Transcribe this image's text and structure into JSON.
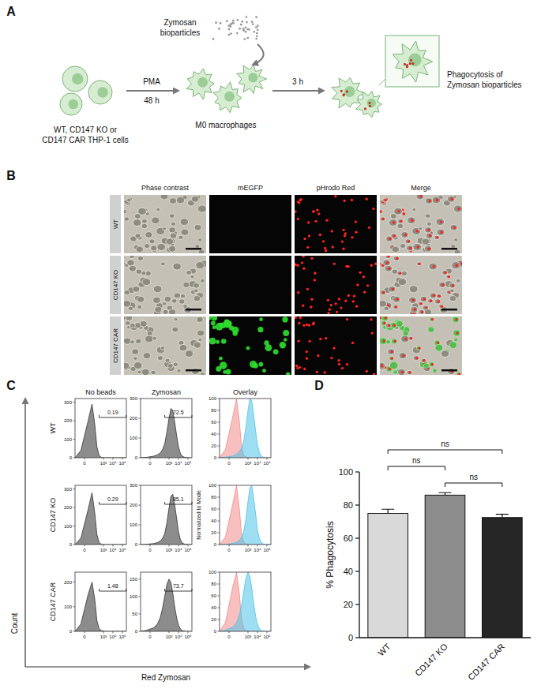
{
  "panel_a": {
    "letter": "A",
    "particles": [
      "Zymosan",
      "bioparticles"
    ],
    "cells": [
      "WT, CD147 KO or",
      "CD147 CAR THP-1 cells"
    ],
    "treatment": "PMA",
    "treatment_time": "48 h",
    "macrophages": "M0 macrophages",
    "incubation_time": "3 h",
    "outcome": [
      "Phagocytosis of",
      "Zymosan bioparticles"
    ]
  },
  "panel_b": {
    "letter": "B",
    "columns": [
      "Phase contrast",
      "mEGFP",
      "pHrodo Red",
      "Merge"
    ],
    "rows": [
      "WT",
      "CD147 KO",
      "CD147 CAR"
    ]
  },
  "panel_c": {
    "letter": "C",
    "columns": [
      "No beads",
      "Zymosan",
      "Overlay"
    ],
    "rows": [
      "WT",
      "CD147 KO",
      "CD147 CAR"
    ],
    "y_label": "Count",
    "overlay_y_label": "Normalized to Mode",
    "x_label": "Red Zymosan"
  },
  "panel_d": {
    "letter": "D"
  },
  "chart_data": [
    {
      "type": "area",
      "x": [
        -100,
        -20,
        20,
        60,
        120,
        200,
        350,
        600,
        1000,
        1600,
        2500,
        4000,
        6500,
        10000,
        16000,
        25000,
        40000,
        65000,
        100000,
        262144
      ],
      "values": [
        0,
        40,
        200,
        290,
        180,
        60,
        12,
        2,
        0,
        0,
        0,
        0,
        0,
        0,
        0,
        0,
        0,
        0,
        0,
        0
      ],
      "color": "#8c8c8c",
      "xlim": [
        -100,
        262144
      ],
      "xticks": [
        0,
        {
          "value": 1000,
          "label": "10³"
        },
        {
          "value": 10000,
          "label": "10⁴"
        },
        {
          "value": 100000,
          "label": "10⁵"
        }
      ],
      "ylim": [
        0,
        320
      ],
      "yticks": [
        0,
        100,
        200,
        300
      ],
      "gate": [
        350,
        262144
      ],
      "gate_percent": 0.19
    },
    {
      "type": "area",
      "x": [
        -100,
        -20,
        20,
        60,
        120,
        200,
        350,
        600,
        1000,
        1600,
        2500,
        4000,
        6500,
        10000,
        16000,
        25000,
        40000,
        65000,
        100000,
        262144
      ],
      "values": [
        0,
        2,
        8,
        15,
        25,
        40,
        70,
        130,
        200,
        250,
        240,
        180,
        110,
        55,
        22,
        8,
        3,
        1,
        0,
        0
      ],
      "color": "#8c8c8c",
      "xlim": [
        -100,
        262144
      ],
      "xticks": [
        0,
        {
          "value": 1000,
          "label": "10³"
        },
        {
          "value": 10000,
          "label": "10⁴"
        },
        {
          "value": 100000,
          "label": "10⁵"
        }
      ],
      "ylim": [
        0,
        300
      ],
      "yticks": [
        0,
        100,
        200,
        300
      ],
      "gate": [
        350,
        262144
      ],
      "gate_percent": 72.5
    },
    {
      "type": "area",
      "x": [
        -100,
        -20,
        20,
        60,
        120,
        200,
        350,
        600,
        1000,
        1600,
        2500,
        4000,
        6500,
        10000,
        16000,
        25000,
        40000,
        65000,
        100000,
        262144
      ],
      "series": [
        {
          "color": "#f28b8b",
          "values": [
            0,
            14,
            69,
            100,
            62,
            21,
            4,
            1,
            0,
            0,
            0,
            0,
            0,
            0,
            0,
            0,
            0,
            0,
            0,
            0
          ]
        },
        {
          "color": "#4fc3e8",
          "values": [
            0,
            1,
            3,
            6,
            10,
            16,
            28,
            52,
            80,
            100,
            96,
            72,
            44,
            22,
            9,
            3,
            1,
            0,
            0,
            0
          ]
        }
      ],
      "xlim": [
        -100,
        262144
      ],
      "xticks": [
        0,
        {
          "value": 1000,
          "label": "10³"
        },
        {
          "value": 10000,
          "label": "10⁴"
        },
        {
          "value": 100000,
          "label": "10⁵"
        }
      ],
      "ylim": [
        0,
        100
      ],
      "yticks": [
        0,
        20,
        40,
        60,
        80,
        100
      ]
    },
    {
      "type": "area",
      "x": [
        -100,
        -20,
        20,
        60,
        120,
        200,
        350,
        600,
        1000,
        1600,
        2500,
        4000,
        6500,
        10000,
        16000,
        25000,
        40000,
        65000,
        100000,
        262144
      ],
      "values": [
        0,
        35,
        190,
        280,
        170,
        55,
        10,
        2,
        0,
        0,
        0,
        0,
        0,
        0,
        0,
        0,
        0,
        0,
        0,
        0
      ],
      "color": "#8c8c8c",
      "xlim": [
        -100,
        262144
      ],
      "xticks": [
        0,
        {
          "value": 1000,
          "label": "10³"
        },
        {
          "value": 10000,
          "label": "10⁴"
        },
        {
          "value": 100000,
          "label": "10⁵"
        }
      ],
      "ylim": [
        0,
        320
      ],
      "yticks": [
        0,
        100,
        200,
        300
      ],
      "gate": [
        350,
        262144
      ],
      "gate_percent": 0.29
    },
    {
      "type": "area",
      "x": [
        -100,
        -20,
        20,
        60,
        120,
        200,
        350,
        600,
        1000,
        1600,
        2500,
        4000,
        6500,
        10000,
        16000,
        25000,
        40000,
        65000,
        100000,
        262144
      ],
      "values": [
        0,
        1,
        5,
        10,
        18,
        30,
        55,
        110,
        185,
        245,
        255,
        200,
        130,
        65,
        25,
        9,
        3,
        1,
        0,
        0
      ],
      "color": "#8c8c8c",
      "xlim": [
        -100,
        262144
      ],
      "xticks": [
        0,
        {
          "value": 1000,
          "label": "10³"
        },
        {
          "value": 10000,
          "label": "10⁴"
        },
        {
          "value": 100000,
          "label": "10⁵"
        }
      ],
      "ylim": [
        0,
        300
      ],
      "yticks": [
        0,
        100,
        200,
        300
      ],
      "gate": [
        350,
        262144
      ],
      "gate_percent": 85.1
    },
    {
      "type": "area",
      "x": [
        -100,
        -20,
        20,
        60,
        120,
        200,
        350,
        600,
        1000,
        1600,
        2500,
        4000,
        6500,
        10000,
        16000,
        25000,
        40000,
        65000,
        100000,
        262144
      ],
      "series": [
        {
          "color": "#f28b8b",
          "values": [
            0,
            13,
            68,
            100,
            61,
            20,
            4,
            1,
            0,
            0,
            0,
            0,
            0,
            0,
            0,
            0,
            0,
            0,
            0,
            0
          ]
        },
        {
          "color": "#4fc3e8",
          "values": [
            0,
            0,
            2,
            4,
            7,
            12,
            22,
            43,
            73,
            96,
            100,
            78,
            51,
            25,
            10,
            4,
            1,
            0,
            0,
            0
          ]
        }
      ],
      "xlim": [
        -100,
        262144
      ],
      "xticks": [
        0,
        {
          "value": 1000,
          "label": "10³"
        },
        {
          "value": 10000,
          "label": "10⁴"
        },
        {
          "value": 100000,
          "label": "10⁵"
        }
      ],
      "ylim": [
        0,
        100
      ],
      "yticks": [
        0,
        20,
        40,
        60,
        80,
        100
      ]
    },
    {
      "type": "area",
      "x": [
        -100,
        -20,
        20,
        60,
        120,
        200,
        350,
        600,
        1000,
        1600,
        2500,
        4000,
        6500,
        10000,
        16000,
        25000,
        40000,
        65000,
        100000,
        262144
      ],
      "values": [
        0,
        30,
        150,
        200,
        130,
        45,
        10,
        3,
        1,
        0,
        0,
        0,
        0,
        0,
        0,
        0,
        0,
        0,
        0,
        0
      ],
      "color": "#8c8c8c",
      "xlim": [
        -100,
        262144
      ],
      "xticks": [
        0,
        {
          "value": 1000,
          "label": "10³"
        },
        {
          "value": 10000,
          "label": "10⁴"
        },
        {
          "value": 100000,
          "label": "10⁵"
        }
      ],
      "ylim": [
        0,
        240
      ],
      "yticks": [
        0,
        100,
        200
      ],
      "gate": [
        350,
        262144
      ],
      "gate_percent": 1.48
    },
    {
      "type": "area",
      "x": [
        -100,
        -20,
        20,
        60,
        120,
        200,
        350,
        600,
        1000,
        1600,
        2500,
        4000,
        6500,
        10000,
        16000,
        25000,
        40000,
        65000,
        100000,
        262144
      ],
      "values": [
        0,
        3,
        10,
        22,
        40,
        65,
        100,
        135,
        150,
        140,
        110,
        70,
        38,
        18,
        7,
        2,
        1,
        0,
        0,
        0
      ],
      "color": "#8c8c8c",
      "xlim": [
        -100,
        262144
      ],
      "xticks": [
        0,
        {
          "value": 1000,
          "label": "10³"
        },
        {
          "value": 10000,
          "label": "10⁴"
        },
        {
          "value": 100000,
          "label": "10⁵"
        }
      ],
      "ylim": [
        0,
        170
      ],
      "yticks": [
        0,
        50,
        100,
        150
      ],
      "gate": [
        350,
        262144
      ],
      "gate_percent": 73.7
    },
    {
      "type": "area",
      "x": [
        -100,
        -20,
        20,
        60,
        120,
        200,
        350,
        600,
        1000,
        1600,
        2500,
        4000,
        6500,
        10000,
        16000,
        25000,
        40000,
        65000,
        100000,
        262144
      ],
      "series": [
        {
          "color": "#f28b8b",
          "values": [
            0,
            15,
            75,
            100,
            65,
            23,
            5,
            2,
            1,
            0,
            0,
            0,
            0,
            0,
            0,
            0,
            0,
            0,
            0,
            0
          ]
        },
        {
          "color": "#4fc3e8",
          "values": [
            0,
            2,
            7,
            15,
            27,
            43,
            67,
            90,
            100,
            93,
            73,
            47,
            25,
            12,
            5,
            1,
            1,
            0,
            0,
            0
          ]
        }
      ],
      "xlim": [
        -100,
        262144
      ],
      "xticks": [
        0,
        {
          "value": 1000,
          "label": "10³"
        },
        {
          "value": 10000,
          "label": "10⁴"
        },
        {
          "value": 100000,
          "label": "10⁵"
        }
      ],
      "ylim": [
        0,
        100
      ],
      "yticks": [
        0,
        20,
        40,
        60,
        80,
        100
      ]
    },
    {
      "type": "bar",
      "categories": [
        "WT",
        "CD147 KO",
        "CD147 CAR"
      ],
      "values": [
        75,
        86,
        72.5
      ],
      "errors": [
        2.5,
        1.5,
        2
      ],
      "colors": [
        "#d9d9d9",
        "#8c8c8c",
        "#262626"
      ],
      "y_label": "% Phagocytosis",
      "ylim": [
        0,
        100
      ],
      "yticks": [
        0,
        20,
        40,
        60,
        80,
        100
      ],
      "comparisons": [
        {
          "pair": [
            0,
            2
          ],
          "label": "ns"
        },
        {
          "pair": [
            0,
            1
          ],
          "label": "ns"
        },
        {
          "pair": [
            1,
            2
          ],
          "label": "ns"
        }
      ]
    }
  ]
}
